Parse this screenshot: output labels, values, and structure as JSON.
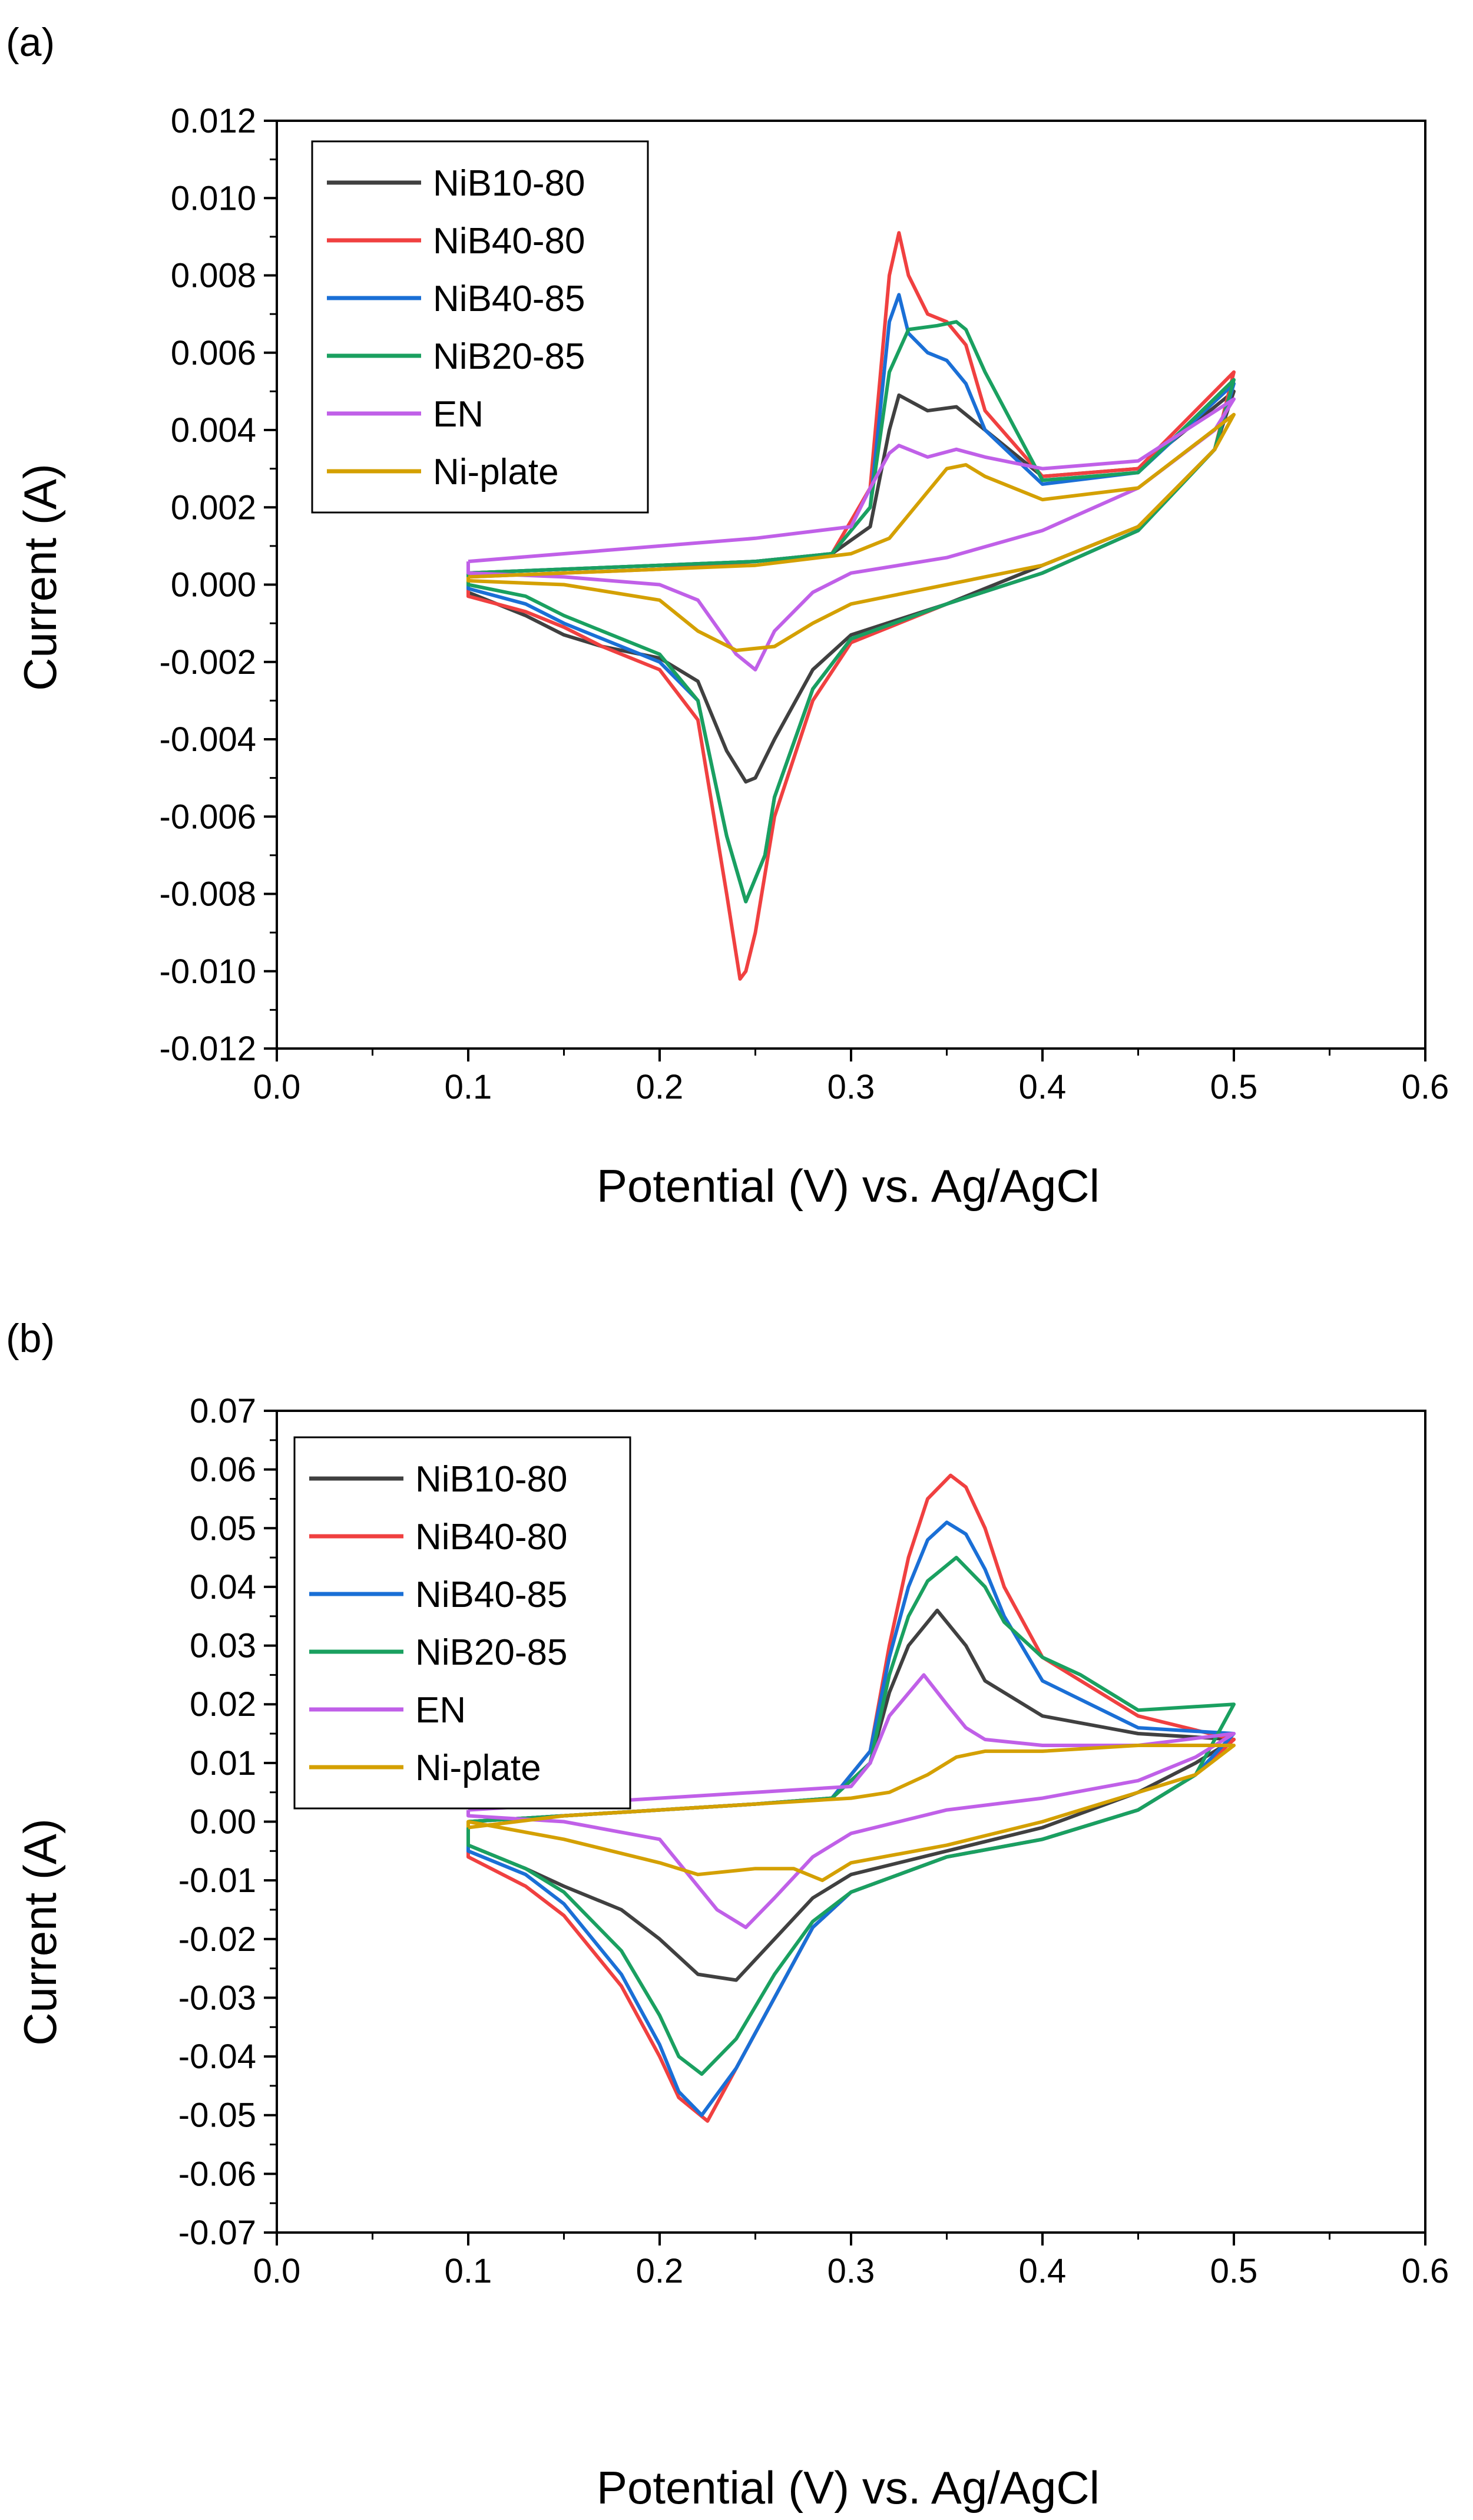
{
  "chart_data": [
    {
      "panel_label": "(a)",
      "type": "line",
      "xlabel": "Potential (V) vs. Ag/AgCl",
      "ylabel": "Current (A)",
      "xlim": [
        0.0,
        0.6
      ],
      "ylim": [
        -0.012,
        0.012
      ],
      "x_ticks": [
        0.0,
        0.1,
        0.2,
        0.3,
        0.4,
        0.5,
        0.6
      ],
      "x_tick_labels": [
        "0.0",
        "0.1",
        "0.2",
        "0.3",
        "0.4",
        "0.5",
        "0.6"
      ],
      "y_ticks": [
        0.012,
        0.01,
        0.008,
        0.006,
        0.004,
        0.002,
        0.0,
        -0.002,
        -0.004,
        -0.006,
        -0.008,
        -0.01,
        -0.012
      ],
      "y_tick_labels": [
        "0.012",
        "0.010",
        "0.008",
        "0.006",
        "0.004",
        "0.002",
        "0.000",
        "-0.002",
        "-0.004",
        "-0.006",
        "-0.008",
        "-0.010",
        "-0.012"
      ],
      "grid": false,
      "legend_position": "top-left",
      "series": [
        {
          "name": "NiB10-80",
          "color": "#404040",
          "x": [
            0.1,
            0.15,
            0.2,
            0.25,
            0.29,
            0.31,
            0.32,
            0.325,
            0.34,
            0.355,
            0.37,
            0.4,
            0.45,
            0.5,
            0.49,
            0.45,
            0.4,
            0.35,
            0.3,
            0.28,
            0.26,
            0.25,
            0.245,
            0.235,
            0.22,
            0.2,
            0.17,
            0.15,
            0.13,
            0.1
          ],
          "y": [
            0.0003,
            0.0004,
            0.0005,
            0.0006,
            0.0008,
            0.0015,
            0.004,
            0.0049,
            0.0045,
            0.0046,
            0.004,
            0.0028,
            0.003,
            0.005,
            0.0035,
            0.0015,
            0.0005,
            -0.0005,
            -0.0013,
            -0.0022,
            -0.004,
            -0.005,
            -0.0051,
            -0.0043,
            -0.0025,
            -0.0019,
            -0.0016,
            -0.0013,
            -0.0008,
            -0.0002
          ]
        },
        {
          "name": "NiB40-80",
          "color": "#f04040",
          "x": [
            0.1,
            0.15,
            0.2,
            0.25,
            0.29,
            0.31,
            0.32,
            0.325,
            0.33,
            0.34,
            0.35,
            0.36,
            0.37,
            0.4,
            0.45,
            0.5,
            0.49,
            0.45,
            0.4,
            0.35,
            0.3,
            0.28,
            0.26,
            0.25,
            0.245,
            0.242,
            0.235,
            0.22,
            0.2,
            0.17,
            0.15,
            0.13,
            0.1
          ],
          "y": [
            0.0002,
            0.0003,
            0.0004,
            0.0006,
            0.0008,
            0.0025,
            0.008,
            0.0091,
            0.008,
            0.007,
            0.0068,
            0.0062,
            0.0045,
            0.0028,
            0.003,
            0.0055,
            0.0035,
            0.0014,
            0.0003,
            -0.0005,
            -0.0015,
            -0.003,
            -0.006,
            -0.009,
            -0.01,
            -0.0102,
            -0.008,
            -0.0035,
            -0.0022,
            -0.0016,
            -0.0011,
            -0.0007,
            -0.0003
          ]
        },
        {
          "name": "NiB40-85",
          "color": "#1a6fd6",
          "x": [
            0.1,
            0.15,
            0.2,
            0.25,
            0.29,
            0.31,
            0.32,
            0.325,
            0.33,
            0.34,
            0.35,
            0.36,
            0.37,
            0.4,
            0.45,
            0.5,
            0.49,
            0.45,
            0.4,
            0.35,
            0.3,
            0.28,
            0.26,
            0.255,
            0.245,
            0.235,
            0.22,
            0.2,
            0.17,
            0.15,
            0.13,
            0.1
          ],
          "y": [
            0.0003,
            0.0004,
            0.0005,
            0.0006,
            0.0008,
            0.002,
            0.0068,
            0.0075,
            0.0065,
            0.006,
            0.0058,
            0.0052,
            0.004,
            0.0026,
            0.0029,
            0.0052,
            0.0035,
            0.0014,
            0.0003,
            -0.0005,
            -0.0014,
            -0.0027,
            -0.0055,
            -0.007,
            -0.0082,
            -0.0065,
            -0.003,
            -0.002,
            -0.0014,
            -0.001,
            -0.0005,
            -0.0001
          ]
        },
        {
          "name": "NiB20-85",
          "color": "#1aa060",
          "x": [
            0.1,
            0.15,
            0.2,
            0.25,
            0.29,
            0.31,
            0.32,
            0.33,
            0.345,
            0.355,
            0.36,
            0.37,
            0.4,
            0.45,
            0.5,
            0.49,
            0.45,
            0.4,
            0.35,
            0.3,
            0.28,
            0.26,
            0.255,
            0.245,
            0.235,
            0.22,
            0.2,
            0.17,
            0.15,
            0.13,
            0.1
          ],
          "y": [
            0.0003,
            0.0004,
            0.0005,
            0.0006,
            0.0008,
            0.002,
            0.0055,
            0.0066,
            0.0067,
            0.0068,
            0.0066,
            0.0055,
            0.0027,
            0.0029,
            0.0053,
            0.0035,
            0.0014,
            0.0003,
            -0.0005,
            -0.0014,
            -0.0027,
            -0.0055,
            -0.007,
            -0.0082,
            -0.0065,
            -0.003,
            -0.0018,
            -0.0012,
            -0.0008,
            -0.0003,
            0.0
          ]
        },
        {
          "name": "EN",
          "color": "#c060e8",
          "x": [
            0.1,
            0.15,
            0.2,
            0.25,
            0.3,
            0.31,
            0.32,
            0.325,
            0.34,
            0.355,
            0.37,
            0.4,
            0.45,
            0.5,
            0.49,
            0.45,
            0.4,
            0.35,
            0.3,
            0.28,
            0.26,
            0.25,
            0.24,
            0.22,
            0.2,
            0.15,
            0.1
          ],
          "y": [
            0.0006,
            0.0008,
            0.001,
            0.0012,
            0.0015,
            0.0025,
            0.0034,
            0.0036,
            0.0033,
            0.0035,
            0.0033,
            0.003,
            0.0032,
            0.0048,
            0.004,
            0.0025,
            0.0014,
            0.0007,
            0.0003,
            -0.0002,
            -0.0012,
            -0.0022,
            -0.0018,
            -0.0004,
            0.0,
            0.0002,
            0.0003
          ]
        },
        {
          "name": "Ni-plate",
          "color": "#d4a000",
          "x": [
            0.1,
            0.15,
            0.2,
            0.25,
            0.3,
            0.32,
            0.33,
            0.35,
            0.36,
            0.37,
            0.4,
            0.45,
            0.5,
            0.49,
            0.45,
            0.4,
            0.35,
            0.3,
            0.28,
            0.27,
            0.26,
            0.24,
            0.22,
            0.2,
            0.15,
            0.1
          ],
          "y": [
            0.0002,
            0.0003,
            0.0004,
            0.0005,
            0.0008,
            0.0012,
            0.0018,
            0.003,
            0.0031,
            0.0028,
            0.0022,
            0.0025,
            0.0044,
            0.0035,
            0.0015,
            0.0005,
            0.0,
            -0.0005,
            -0.001,
            -0.0013,
            -0.0016,
            -0.0017,
            -0.0012,
            -0.0004,
            0.0,
            0.0001
          ]
        }
      ]
    },
    {
      "panel_label": "(b)",
      "type": "line",
      "xlabel": "Potential (V) vs. Ag/AgCl",
      "ylabel": "Current (A)",
      "xlim": [
        0.0,
        0.6
      ],
      "ylim": [
        -0.07,
        0.07
      ],
      "x_ticks": [
        0.0,
        0.1,
        0.2,
        0.3,
        0.4,
        0.5,
        0.6
      ],
      "x_tick_labels": [
        "0.0",
        "0.1",
        "0.2",
        "0.3",
        "0.4",
        "0.5",
        "0.6"
      ],
      "y_ticks": [
        0.07,
        0.06,
        0.05,
        0.04,
        0.03,
        0.02,
        0.01,
        0.0,
        -0.01,
        -0.02,
        -0.03,
        -0.04,
        -0.05,
        -0.06,
        -0.07
      ],
      "y_tick_labels": [
        "0.07",
        "0.06",
        "0.05",
        "0.04",
        "0.03",
        "0.02",
        "0.01",
        "0.00",
        "-0.01",
        "-0.02",
        "-0.03",
        "-0.04",
        "-0.05",
        "-0.06",
        "-0.07"
      ],
      "grid": false,
      "legend_position": "top-left",
      "series": [
        {
          "name": "NiB10-80",
          "color": "#404040",
          "x": [
            0.1,
            0.15,
            0.2,
            0.25,
            0.29,
            0.31,
            0.32,
            0.33,
            0.345,
            0.36,
            0.37,
            0.4,
            0.45,
            0.5,
            0.48,
            0.45,
            0.4,
            0.35,
            0.3,
            0.28,
            0.26,
            0.24,
            0.22,
            0.2,
            0.18,
            0.15,
            0.13,
            0.1
          ],
          "y": [
            0.0,
            0.001,
            0.002,
            0.003,
            0.004,
            0.01,
            0.022,
            0.03,
            0.036,
            0.03,
            0.024,
            0.018,
            0.015,
            0.014,
            0.01,
            0.005,
            -0.001,
            -0.005,
            -0.009,
            -0.013,
            -0.02,
            -0.027,
            -0.026,
            -0.02,
            -0.015,
            -0.011,
            -0.008,
            -0.004
          ]
        },
        {
          "name": "NiB40-80",
          "color": "#f04040",
          "x": [
            0.1,
            0.15,
            0.2,
            0.25,
            0.29,
            0.31,
            0.32,
            0.33,
            0.34,
            0.352,
            0.36,
            0.37,
            0.38,
            0.4,
            0.45,
            0.5,
            0.48,
            0.45,
            0.4,
            0.35,
            0.3,
            0.28,
            0.26,
            0.24,
            0.225,
            0.21,
            0.2,
            0.18,
            0.15,
            0.13,
            0.1
          ],
          "y": [
            0.0,
            0.001,
            0.002,
            0.003,
            0.004,
            0.012,
            0.03,
            0.045,
            0.055,
            0.059,
            0.057,
            0.05,
            0.04,
            0.028,
            0.018,
            0.014,
            0.008,
            0.002,
            -0.003,
            -0.006,
            -0.012,
            -0.018,
            -0.03,
            -0.042,
            -0.051,
            -0.047,
            -0.04,
            -0.028,
            -0.016,
            -0.011,
            -0.006
          ]
        },
        {
          "name": "NiB40-85",
          "color": "#1a6fd6",
          "x": [
            0.1,
            0.15,
            0.2,
            0.25,
            0.29,
            0.31,
            0.32,
            0.33,
            0.34,
            0.35,
            0.36,
            0.37,
            0.38,
            0.4,
            0.45,
            0.5,
            0.48,
            0.45,
            0.4,
            0.35,
            0.3,
            0.28,
            0.26,
            0.24,
            0.222,
            0.21,
            0.2,
            0.18,
            0.15,
            0.13,
            0.1
          ],
          "y": [
            0.0,
            0.001,
            0.002,
            0.003,
            0.004,
            0.012,
            0.028,
            0.04,
            0.048,
            0.051,
            0.049,
            0.043,
            0.035,
            0.024,
            0.016,
            0.015,
            0.008,
            0.002,
            -0.003,
            -0.006,
            -0.012,
            -0.018,
            -0.03,
            -0.042,
            -0.05,
            -0.046,
            -0.038,
            -0.026,
            -0.014,
            -0.009,
            -0.005
          ]
        },
        {
          "name": "NiB20-85",
          "color": "#1aa060",
          "x": [
            0.1,
            0.15,
            0.2,
            0.25,
            0.29,
            0.31,
            0.32,
            0.33,
            0.34,
            0.355,
            0.37,
            0.38,
            0.4,
            0.42,
            0.45,
            0.5,
            0.48,
            0.45,
            0.4,
            0.35,
            0.3,
            0.28,
            0.26,
            0.24,
            0.222,
            0.21,
            0.2,
            0.18,
            0.15,
            0.13,
            0.1
          ],
          "y": [
            0.0,
            0.001,
            0.002,
            0.003,
            0.004,
            0.01,
            0.025,
            0.035,
            0.041,
            0.045,
            0.04,
            0.034,
            0.028,
            0.025,
            0.019,
            0.02,
            0.008,
            0.002,
            -0.003,
            -0.006,
            -0.012,
            -0.017,
            -0.026,
            -0.037,
            -0.043,
            -0.04,
            -0.033,
            -0.022,
            -0.012,
            -0.008,
            -0.004
          ]
        },
        {
          "name": "EN",
          "color": "#c060e8",
          "x": [
            0.1,
            0.15,
            0.2,
            0.25,
            0.3,
            0.31,
            0.32,
            0.338,
            0.35,
            0.36,
            0.37,
            0.4,
            0.45,
            0.5,
            0.48,
            0.45,
            0.4,
            0.35,
            0.3,
            0.28,
            0.26,
            0.245,
            0.23,
            0.21,
            0.2,
            0.15,
            0.1
          ],
          "y": [
            0.002,
            0.003,
            0.004,
            0.005,
            0.006,
            0.01,
            0.018,
            0.025,
            0.02,
            0.016,
            0.014,
            0.013,
            0.013,
            0.015,
            0.011,
            0.007,
            0.004,
            0.002,
            -0.002,
            -0.006,
            -0.013,
            -0.018,
            -0.015,
            -0.007,
            -0.003,
            0.0,
            0.001
          ]
        },
        {
          "name": "Ni-plate",
          "color": "#d4a000",
          "x": [
            0.1,
            0.15,
            0.2,
            0.25,
            0.3,
            0.32,
            0.34,
            0.355,
            0.37,
            0.4,
            0.45,
            0.5,
            0.48,
            0.45,
            0.4,
            0.35,
            0.3,
            0.285,
            0.27,
            0.25,
            0.22,
            0.2,
            0.15,
            0.1
          ],
          "y": [
            -0.001,
            0.001,
            0.002,
            0.003,
            0.004,
            0.005,
            0.008,
            0.011,
            0.012,
            0.012,
            0.013,
            0.013,
            0.008,
            0.005,
            0.0,
            -0.004,
            -0.007,
            -0.01,
            -0.008,
            -0.008,
            -0.009,
            -0.007,
            -0.003,
            0.0
          ]
        }
      ]
    }
  ]
}
